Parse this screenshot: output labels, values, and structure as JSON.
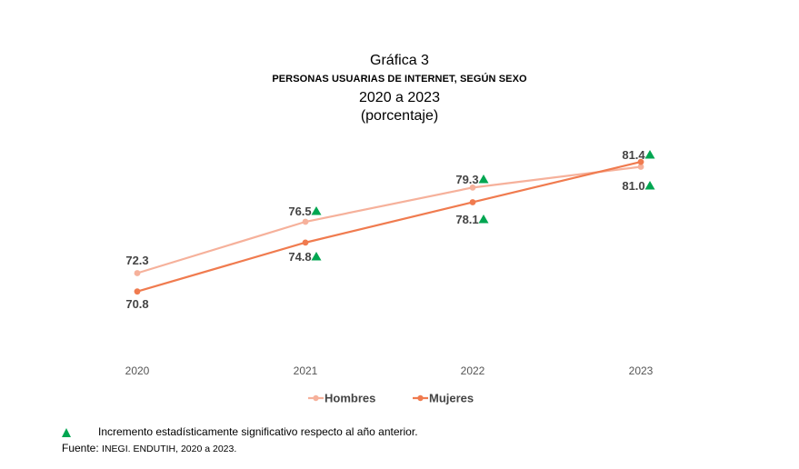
{
  "header": {
    "figure_number": "Gráfica 3",
    "title": "PERSONAS USUARIAS DE INTERNET, SEGÚN SEXO",
    "period": "2020 a 2023",
    "unit": "(porcentaje)"
  },
  "chart_data": {
    "type": "line",
    "title": "PERSONAS USUARIAS DE INTERNET, SEGÚN SEXO",
    "categories": [
      "2020",
      "2021",
      "2022",
      "2023"
    ],
    "series": [
      {
        "name": "Hombres",
        "color": "#f6b19b",
        "values": [
          72.3,
          76.5,
          79.3,
          81.0
        ],
        "labels": [
          "72.3",
          "76.5",
          "79.3",
          "81.0"
        ],
        "significant_increase": [
          false,
          true,
          true,
          true
        ]
      },
      {
        "name": "Mujeres",
        "color": "#f07b4f",
        "values": [
          70.8,
          74.8,
          78.1,
          81.4
        ],
        "labels": [
          "70.8",
          "74.8",
          "78.1",
          "81.4"
        ],
        "significant_increase": [
          false,
          true,
          true,
          true
        ]
      }
    ],
    "marker_color": "#00a651",
    "grid": false,
    "legend_position": "bottom"
  },
  "footer": {
    "note": "Incremento estadísticamente significativo respecto al año anterior.",
    "source_prefix": "Fuente:",
    "source_body": "INEGI. ENDUTIH, 2020 a 2023."
  }
}
